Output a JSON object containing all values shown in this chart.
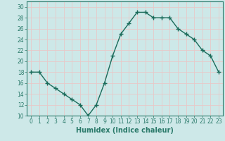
{
  "x": [
    0,
    1,
    2,
    3,
    4,
    5,
    6,
    7,
    8,
    9,
    10,
    11,
    12,
    13,
    14,
    15,
    16,
    17,
    18,
    19,
    20,
    21,
    22,
    23
  ],
  "y": [
    18,
    18,
    16,
    15,
    14,
    13,
    12,
    10,
    12,
    16,
    21,
    25,
    27,
    29,
    29,
    28,
    28,
    28,
    26,
    25,
    24,
    22,
    21,
    18
  ],
  "line_color": "#1a6b5a",
  "marker": "+",
  "marker_size": 4,
  "bg_color": "#cde8e8",
  "grid_color": "#e8c8c8",
  "title": "",
  "xlabel": "Humidex (Indice chaleur)",
  "ylabel": "",
  "xlim": [
    -0.5,
    23.5
  ],
  "ylim": [
    10,
    31
  ],
  "yticks": [
    10,
    12,
    14,
    16,
    18,
    20,
    22,
    24,
    26,
    28,
    30
  ],
  "xticks": [
    0,
    1,
    2,
    3,
    4,
    5,
    6,
    7,
    8,
    9,
    10,
    11,
    12,
    13,
    14,
    15,
    16,
    17,
    18,
    19,
    20,
    21,
    22,
    23
  ],
  "xlabel_fontsize": 7,
  "tick_fontsize": 5.5,
  "linewidth": 1.0,
  "marker_color": "#1a6b5a",
  "axis_color": "#2a7a6a",
  "spine_color": "#2a7a6a"
}
